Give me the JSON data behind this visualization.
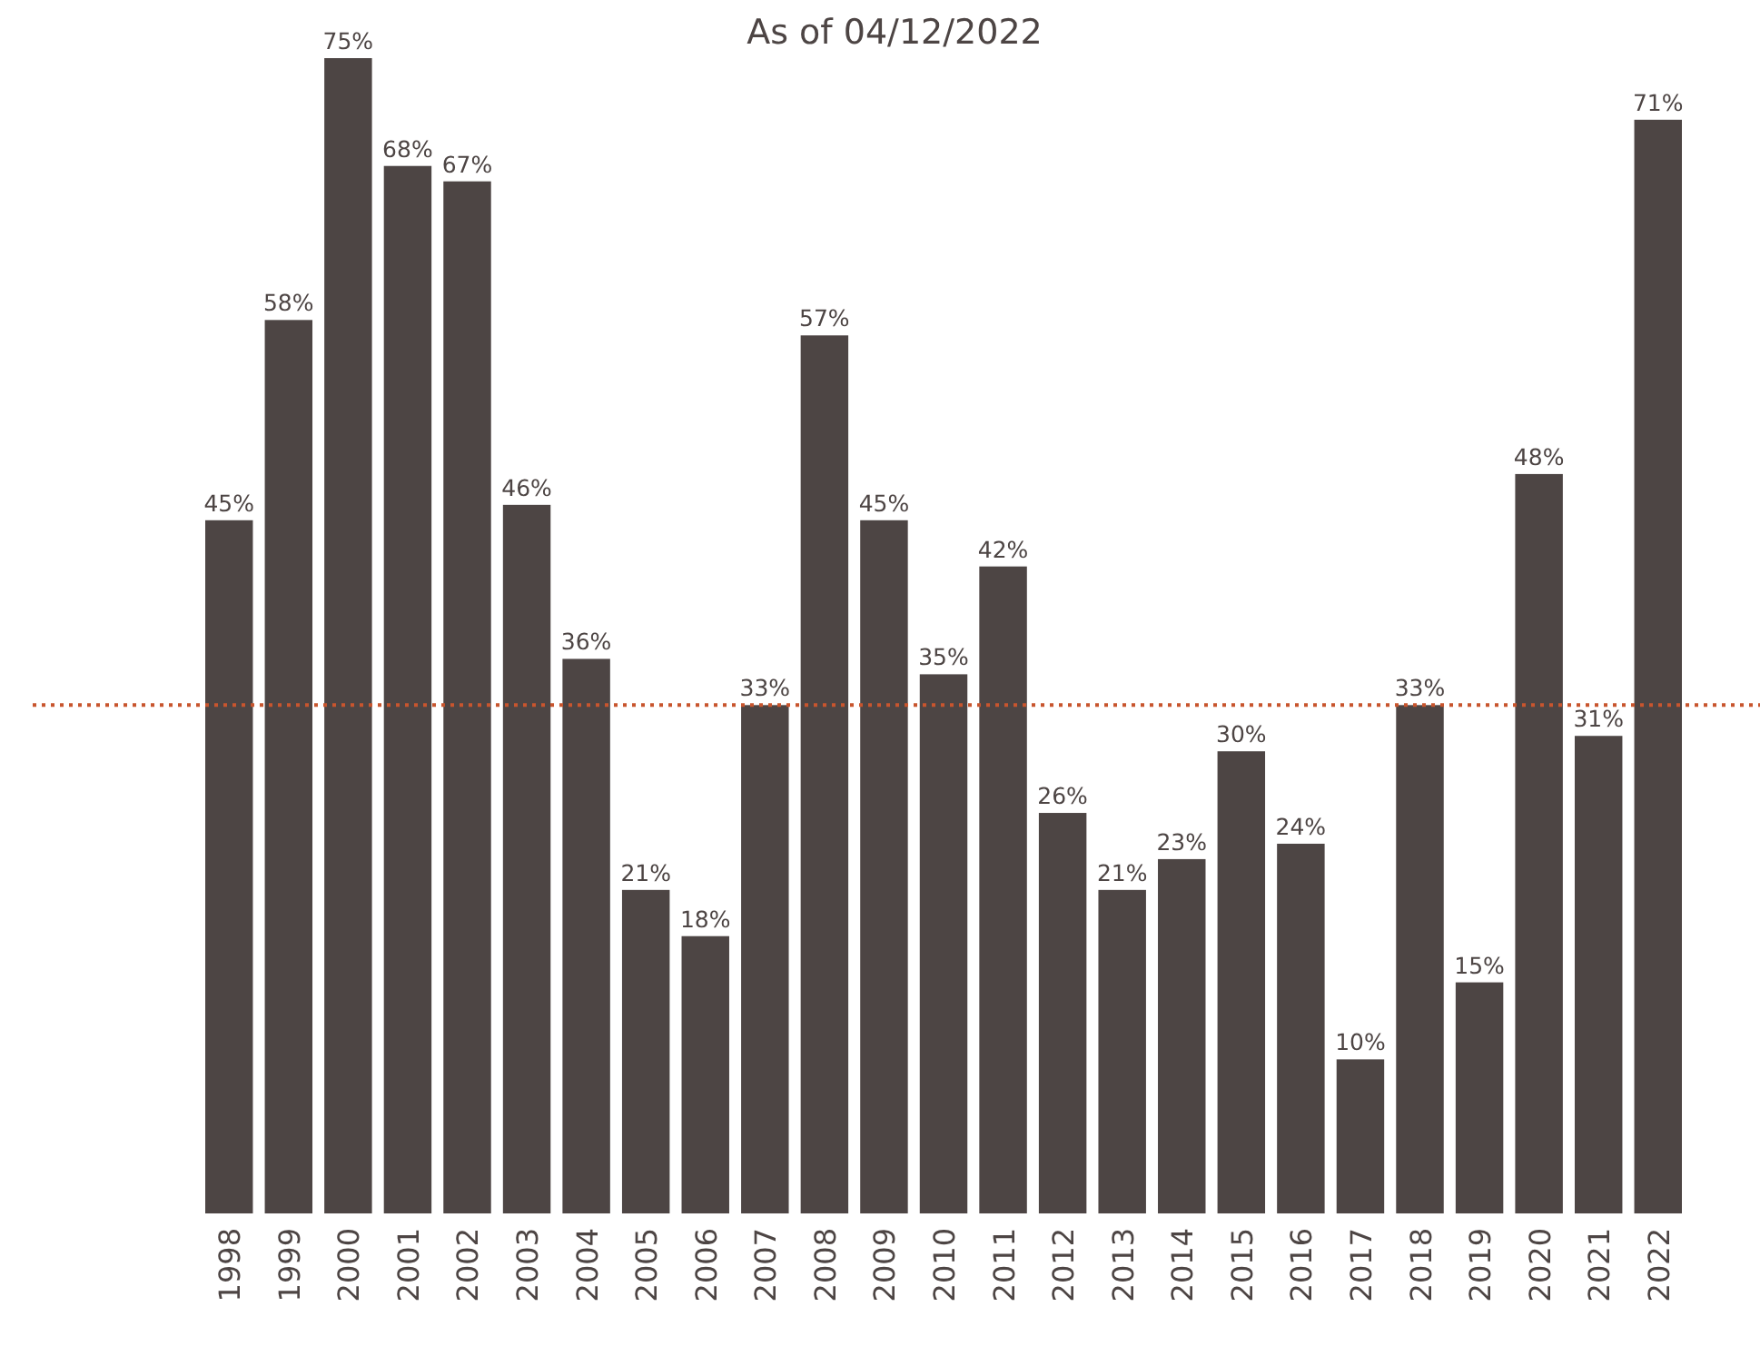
{
  "chart_data": {
    "type": "bar",
    "title": "As of 04/12/2022",
    "categories": [
      "1998",
      "1999",
      "2000",
      "2001",
      "2002",
      "2003",
      "2004",
      "2005",
      "2006",
      "2007",
      "2008",
      "2009",
      "2010",
      "2011",
      "2012",
      "2013",
      "2014",
      "2015",
      "2016",
      "2017",
      "2018",
      "2019",
      "2020",
      "2021",
      "2022"
    ],
    "values": [
      45,
      58,
      75,
      68,
      67,
      46,
      36,
      21,
      18,
      33,
      57,
      45,
      35,
      42,
      26,
      21,
      23,
      30,
      24,
      10,
      33,
      15,
      48,
      31,
      71
    ],
    "value_labels": [
      "45%",
      "58%",
      "75%",
      "68%",
      "67%",
      "46%",
      "36%",
      "21%",
      "18%",
      "33%",
      "57%",
      "45%",
      "35%",
      "42%",
      "26%",
      "21%",
      "23%",
      "30%",
      "24%",
      "10%",
      "33%",
      "15%",
      "48%",
      "31%",
      "71%"
    ],
    "color": "#4d4544",
    "ref_lines": [
      {
        "axis": "y",
        "value": 33,
        "color": "#c8552e",
        "line_style": "dotted"
      }
    ]
  }
}
